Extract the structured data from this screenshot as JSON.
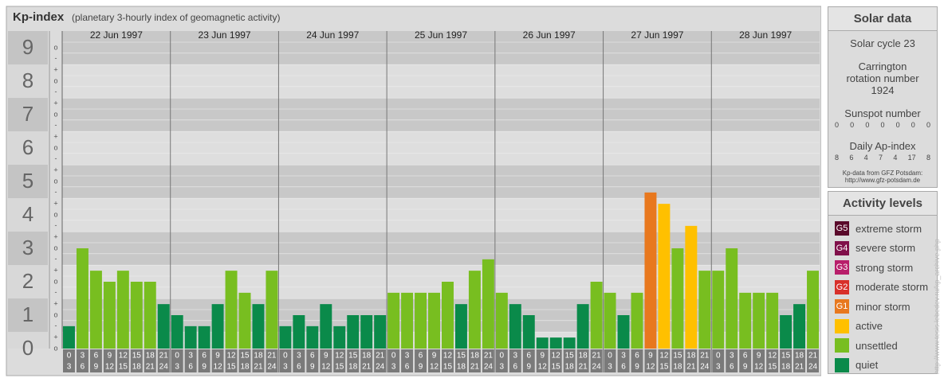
{
  "chart_data": {
    "type": "bar",
    "title": "Kp-index",
    "subtitle": "(planetary 3-hourly index of geomagnetic activity)",
    "ylim": [
      0,
      9.5
    ],
    "yticks": [
      0,
      1,
      2,
      3,
      4,
      5,
      6,
      7,
      8,
      9
    ],
    "minor_ticks": [
      {
        "value": 0,
        "label": "o"
      },
      {
        "value": 0.33,
        "label": "+"
      },
      {
        "value": 0.67,
        "label": "-"
      },
      {
        "value": 1,
        "label": "o"
      },
      {
        "value": 1.33,
        "label": "+"
      },
      {
        "value": 1.67,
        "label": "-"
      },
      {
        "value": 2,
        "label": "o"
      },
      {
        "value": 2.33,
        "label": "+"
      },
      {
        "value": 2.67,
        "label": "-"
      },
      {
        "value": 3,
        "label": "o"
      },
      {
        "value": 3.33,
        "label": "+"
      },
      {
        "value": 3.67,
        "label": "-"
      },
      {
        "value": 4,
        "label": "o"
      },
      {
        "value": 4.33,
        "label": "+"
      },
      {
        "value": 4.67,
        "label": "-"
      },
      {
        "value": 5,
        "label": "o"
      },
      {
        "value": 5.33,
        "label": "+"
      },
      {
        "value": 5.67,
        "label": "-"
      },
      {
        "value": 6,
        "label": "o"
      },
      {
        "value": 6.33,
        "label": "+"
      },
      {
        "value": 6.67,
        "label": "-"
      },
      {
        "value": 7,
        "label": "o"
      },
      {
        "value": 7.33,
        "label": "+"
      },
      {
        "value": 7.67,
        "label": "-"
      },
      {
        "value": 8,
        "label": "o"
      },
      {
        "value": 8.33,
        "label": "+"
      },
      {
        "value": 8.67,
        "label": "-"
      },
      {
        "value": 9,
        "label": "o"
      }
    ],
    "hour_starts": [
      "0",
      "3",
      "6",
      "9",
      "12",
      "15",
      "18",
      "21"
    ],
    "hour_ends": [
      "3",
      "6",
      "9",
      "12",
      "15",
      "18",
      "21",
      "24"
    ],
    "days": [
      {
        "date": "22 Jun 1997",
        "values": [
          0.67,
          3,
          2.33,
          2,
          2.33,
          2,
          2,
          1.33
        ],
        "colors": [
          "#0a8a4a",
          "#78be20",
          "#78be20",
          "#78be20",
          "#78be20",
          "#78be20",
          "#78be20",
          "#0a8a4a"
        ]
      },
      {
        "date": "23 Jun 1997",
        "values": [
          1,
          0.67,
          0.67,
          1.33,
          2.33,
          1.67,
          1.33,
          2.33
        ],
        "colors": [
          "#0a8a4a",
          "#0a8a4a",
          "#0a8a4a",
          "#0a8a4a",
          "#78be20",
          "#78be20",
          "#0a8a4a",
          "#78be20"
        ]
      },
      {
        "date": "24 Jun 1997",
        "values": [
          0.67,
          1,
          0.67,
          1.33,
          0.67,
          1,
          1,
          1
        ],
        "colors": [
          "#0a8a4a",
          "#0a8a4a",
          "#0a8a4a",
          "#0a8a4a",
          "#0a8a4a",
          "#0a8a4a",
          "#0a8a4a",
          "#0a8a4a"
        ]
      },
      {
        "date": "25 Jun 1997",
        "values": [
          1.67,
          1.67,
          1.67,
          1.67,
          2,
          1.33,
          2.33,
          2.67
        ],
        "colors": [
          "#78be20",
          "#78be20",
          "#78be20",
          "#78be20",
          "#78be20",
          "#0a8a4a",
          "#78be20",
          "#78be20"
        ]
      },
      {
        "date": "26 Jun 1997",
        "values": [
          1.67,
          1.33,
          1,
          0.33,
          0.33,
          0.33,
          1.33,
          2
        ],
        "colors": [
          "#78be20",
          "#0a8a4a",
          "#0a8a4a",
          "#0a8a4a",
          "#0a8a4a",
          "#0a8a4a",
          "#0a8a4a",
          "#78be20"
        ]
      },
      {
        "date": "27 Jun 1997",
        "values": [
          1.67,
          1,
          1.67,
          4.67,
          4.33,
          3,
          3.67,
          2.33
        ],
        "colors": [
          "#78be20",
          "#0a8a4a",
          "#78be20",
          "#e8781e",
          "#ffc000",
          "#78be20",
          "#ffc000",
          "#78be20"
        ]
      },
      {
        "date": "28 Jun 1997",
        "values": [
          2.33,
          3,
          1.67,
          1.67,
          1.67,
          1,
          1.33,
          2.33
        ],
        "colors": [
          "#78be20",
          "#78be20",
          "#78be20",
          "#78be20",
          "#78be20",
          "#0a8a4a",
          "#0a8a4a",
          "#78be20"
        ]
      }
    ]
  },
  "solar_data": {
    "title": "Solar data",
    "cycle": "Solar cycle 23",
    "carrington": "Carrington rotation number 1924",
    "sunspot_title": "Sunspot number",
    "sunspots": [
      "0",
      "0",
      "0",
      "0",
      "0",
      "0",
      "0"
    ],
    "ap_title": "Daily Ap-index",
    "ap": [
      "8",
      "6",
      "4",
      "7",
      "4",
      "17",
      "8"
    ],
    "source": "Kp-data from GFZ Potsdam:",
    "source_url": "http://www.gfz-potsdam.de"
  },
  "activity_levels": {
    "title": "Activity levels",
    "items": [
      {
        "code": "G5",
        "label": "extreme storm",
        "color": "#5a0a2a"
      },
      {
        "code": "G4",
        "label": "severe storm",
        "color": "#80104a"
      },
      {
        "code": "G3",
        "label": "strong storm",
        "color": "#b81e6a"
      },
      {
        "code": "G2",
        "label": "moderate storm",
        "color": "#d8302a"
      },
      {
        "code": "G1",
        "label": "minor storm",
        "color": "#e8781e"
      },
      {
        "label": "active",
        "color": "#ffc000"
      },
      {
        "label": "unsettled",
        "color": "#78be20"
      },
      {
        "label": "quiet",
        "color": "#0a8a4a"
      }
    ]
  },
  "watermark": "http://www.tesis.lebedev.ru/kp_archive.php"
}
